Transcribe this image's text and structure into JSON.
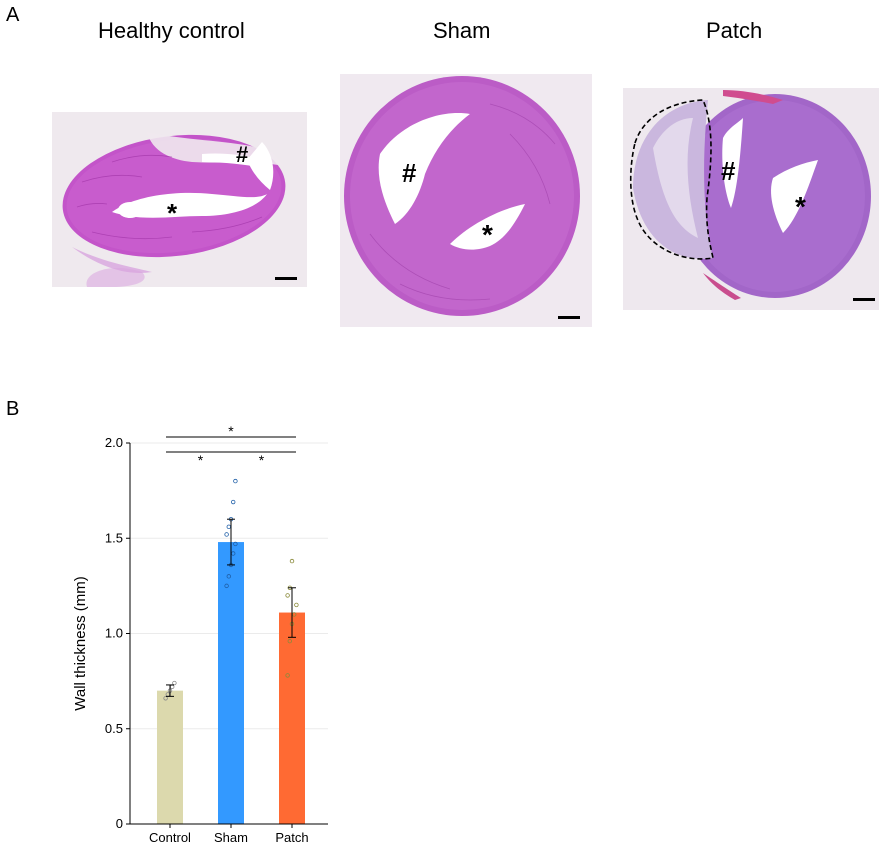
{
  "panel_a": {
    "letter": "A",
    "images": [
      {
        "title": "Healthy control",
        "marks": [
          "#",
          "*"
        ]
      },
      {
        "title": "Sham",
        "marks": [
          "#",
          "*"
        ]
      },
      {
        "title": "Patch",
        "marks": [
          "#",
          "*"
        ]
      }
    ]
  },
  "panel_b": {
    "letter": "B"
  },
  "chart_data": {
    "type": "bar",
    "categories": [
      "Control",
      "Sham",
      "Patch"
    ],
    "values": [
      0.7,
      1.48,
      1.11
    ],
    "errors": [
      0.03,
      0.12,
      0.13
    ],
    "colors": [
      "#dcd9ad",
      "#3399ff",
      "#ff6a33"
    ],
    "points": [
      [
        0.66,
        0.68,
        0.7,
        0.72,
        0.74
      ],
      [
        1.25,
        1.3,
        1.36,
        1.42,
        1.47,
        1.52,
        1.56,
        1.6,
        1.69,
        1.8
      ],
      [
        0.78,
        0.96,
        1.05,
        1.1,
        1.15,
        1.2,
        1.24,
        1.38
      ]
    ],
    "ylabel": "Wall thickness (mm)",
    "xlabel": "",
    "ylim": [
      0,
      2.0
    ],
    "yticks": [
      "0",
      "0.5",
      "1.0",
      "1.5",
      "2.0"
    ],
    "grid": true,
    "significance": [
      {
        "from": 0,
        "to": 1,
        "label": "*"
      },
      {
        "from": 1,
        "to": 2,
        "label": "*"
      },
      {
        "from": 0,
        "to": 2,
        "label": "*"
      }
    ]
  }
}
